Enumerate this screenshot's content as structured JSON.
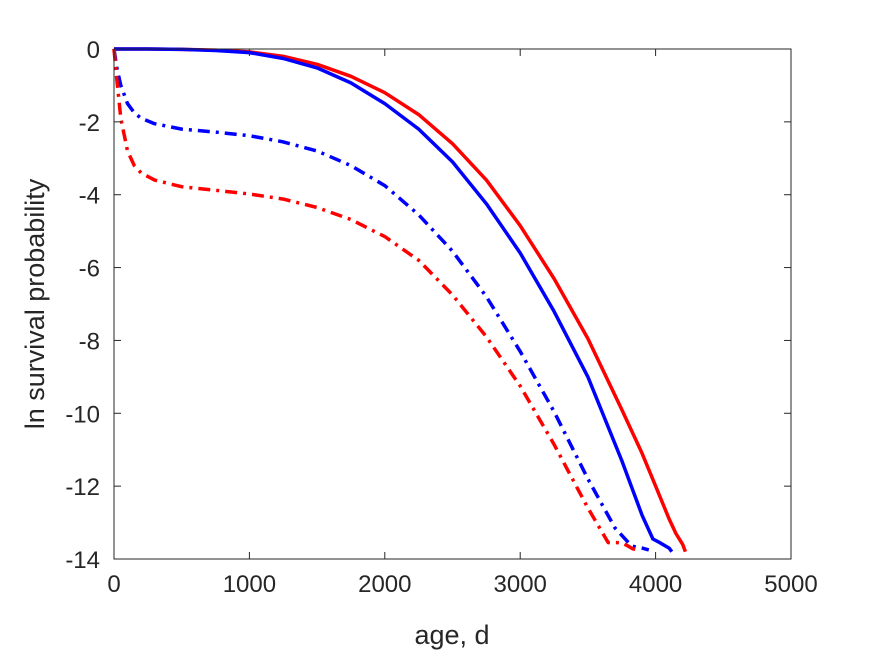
{
  "chart_data": {
    "type": "line",
    "title": "",
    "xlabel": "age, d",
    "ylabel": "ln survival probability",
    "xlim": [
      0,
      5000
    ],
    "ylim": [
      -14,
      0
    ],
    "xticks": [
      0,
      1000,
      2000,
      3000,
      4000,
      5000
    ],
    "yticks": [
      0,
      -2,
      -4,
      -6,
      -8,
      -10,
      -12,
      -14
    ],
    "grid": false,
    "legend": "none",
    "series": [
      {
        "color": "#ff0000",
        "style": "solid",
        "x": [
          0,
          250,
          500,
          750,
          1000,
          1250,
          1500,
          1750,
          2000,
          2250,
          2500,
          2750,
          3000,
          3250,
          3500,
          3750,
          3900,
          4000,
          4100,
          4150,
          4200,
          4220
        ],
        "y": [
          0,
          0,
          -0.01,
          -0.03,
          -0.08,
          -0.2,
          -0.42,
          -0.75,
          -1.2,
          -1.8,
          -2.6,
          -3.6,
          -4.85,
          -6.3,
          -7.95,
          -9.9,
          -11.1,
          -12.0,
          -12.9,
          -13.3,
          -13.6,
          -13.8
        ]
      },
      {
        "color": "#0000ff",
        "style": "solid",
        "x": [
          0,
          250,
          500,
          750,
          1000,
          1250,
          1500,
          1750,
          2000,
          2250,
          2500,
          2750,
          3000,
          3250,
          3500,
          3750,
          3900,
          3980,
          4030,
          4100,
          4120
        ],
        "y": [
          0,
          0,
          -0.01,
          -0.04,
          -0.1,
          -0.26,
          -0.52,
          -0.93,
          -1.5,
          -2.2,
          -3.1,
          -4.25,
          -5.6,
          -7.2,
          -9.0,
          -11.3,
          -12.8,
          -13.45,
          -13.55,
          -13.7,
          -13.8
        ]
      },
      {
        "color": "#0000ff",
        "style": "dashdot",
        "x": [
          0,
          20,
          50,
          100,
          150,
          200,
          300,
          500,
          750,
          1000,
          1250,
          1500,
          1750,
          2000,
          2250,
          2500,
          2750,
          3000,
          3250,
          3500,
          3700,
          3800,
          3830,
          3900,
          3950
        ],
        "y": [
          0,
          -0.5,
          -1.0,
          -1.5,
          -1.75,
          -1.9,
          -2.05,
          -2.2,
          -2.28,
          -2.38,
          -2.55,
          -2.8,
          -3.2,
          -3.75,
          -4.55,
          -5.55,
          -6.8,
          -8.3,
          -9.95,
          -11.8,
          -13.15,
          -13.55,
          -13.65,
          -13.7,
          -13.75
        ]
      },
      {
        "color": "#ff0000",
        "style": "dashdot",
        "x": [
          0,
          20,
          50,
          100,
          150,
          200,
          300,
          500,
          750,
          1000,
          1250,
          1500,
          1750,
          2000,
          2250,
          2500,
          2750,
          3000,
          3250,
          3500,
          3650,
          3750,
          3800,
          3830,
          3870
        ],
        "y": [
          0,
          -0.8,
          -1.9,
          -2.8,
          -3.2,
          -3.4,
          -3.6,
          -3.78,
          -3.88,
          -3.98,
          -4.12,
          -4.35,
          -4.68,
          -5.15,
          -5.8,
          -6.75,
          -7.9,
          -9.25,
          -10.85,
          -12.6,
          -13.55,
          -13.55,
          -13.65,
          -13.72,
          -13.75
        ]
      }
    ]
  }
}
